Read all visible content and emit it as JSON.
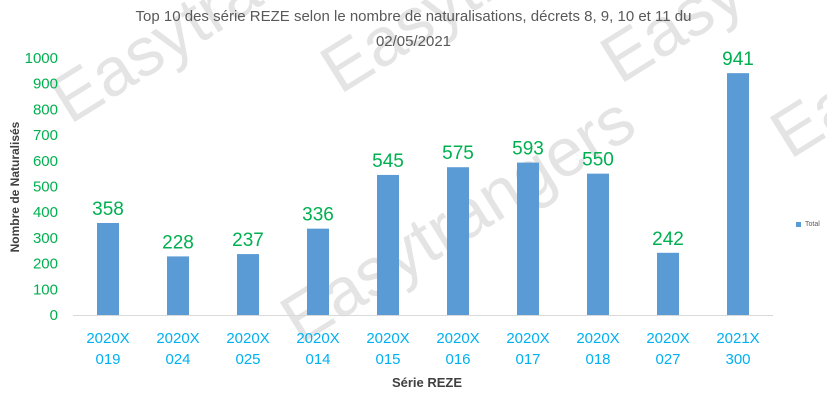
{
  "chart_data": {
    "type": "bar",
    "title_lines": [
      "Top 10 des série REZE selon le nombre de naturalisations, décrets 8, 9, 10 et 11 du",
      "02/05/2021"
    ],
    "xlabel": "Série REZE",
    "ylabel": "Nombre de Naturalisés",
    "categories": [
      [
        "2020X",
        "019"
      ],
      [
        "2020X",
        "024"
      ],
      [
        "2020X",
        "025"
      ],
      [
        "2020X",
        "014"
      ],
      [
        "2020X",
        "015"
      ],
      [
        "2020X",
        "016"
      ],
      [
        "2020X",
        "017"
      ],
      [
        "2020X",
        "018"
      ],
      [
        "2020X",
        "027"
      ],
      [
        "2021X",
        "300"
      ]
    ],
    "series": [
      {
        "name": "Total",
        "values": [
          358,
          228,
          237,
          336,
          545,
          575,
          593,
          550,
          242,
          941
        ]
      }
    ],
    "ylim": [
      0,
      1000
    ],
    "yticks": [
      0,
      100,
      200,
      300,
      400,
      500,
      600,
      700,
      800,
      900,
      1000
    ],
    "grid": false,
    "legend_position": "right",
    "watermark": "Easytrangers",
    "colors": {
      "bar": "#5b9bd5",
      "data_label": "#00b050",
      "y_tick": "#00b050",
      "x_tick": "#00b0f0",
      "axis": "#d9d9d9",
      "watermark": "#e4e4e4"
    }
  }
}
